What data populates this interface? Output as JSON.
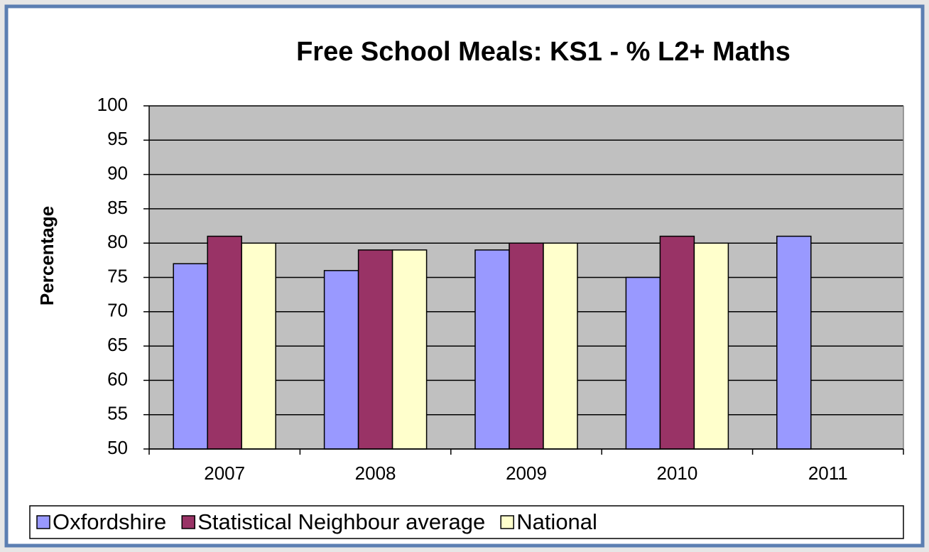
{
  "chart_data": {
    "type": "bar",
    "title": "Free School Meals: KS1 - % L2+ Maths",
    "y_label": "Percentage",
    "categories": [
      "2007",
      "2008",
      "2009",
      "2010",
      "2011"
    ],
    "series": [
      {
        "name": "Oxfordshire",
        "color": "#9999ff",
        "values": [
          77,
          76,
          79,
          75,
          81
        ]
      },
      {
        "name": "Statistical Neighbour average",
        "color": "#993366",
        "values": [
          81,
          79,
          80,
          81,
          null
        ]
      },
      {
        "name": "National",
        "color": "#ffffcc",
        "values": [
          80,
          79,
          80,
          80,
          null
        ]
      }
    ],
    "ylim": [
      50,
      100
    ],
    "yticks": [
      50,
      55,
      60,
      65,
      70,
      75,
      80,
      85,
      90,
      95,
      100
    ],
    "grid": true,
    "legend": "bottom"
  }
}
